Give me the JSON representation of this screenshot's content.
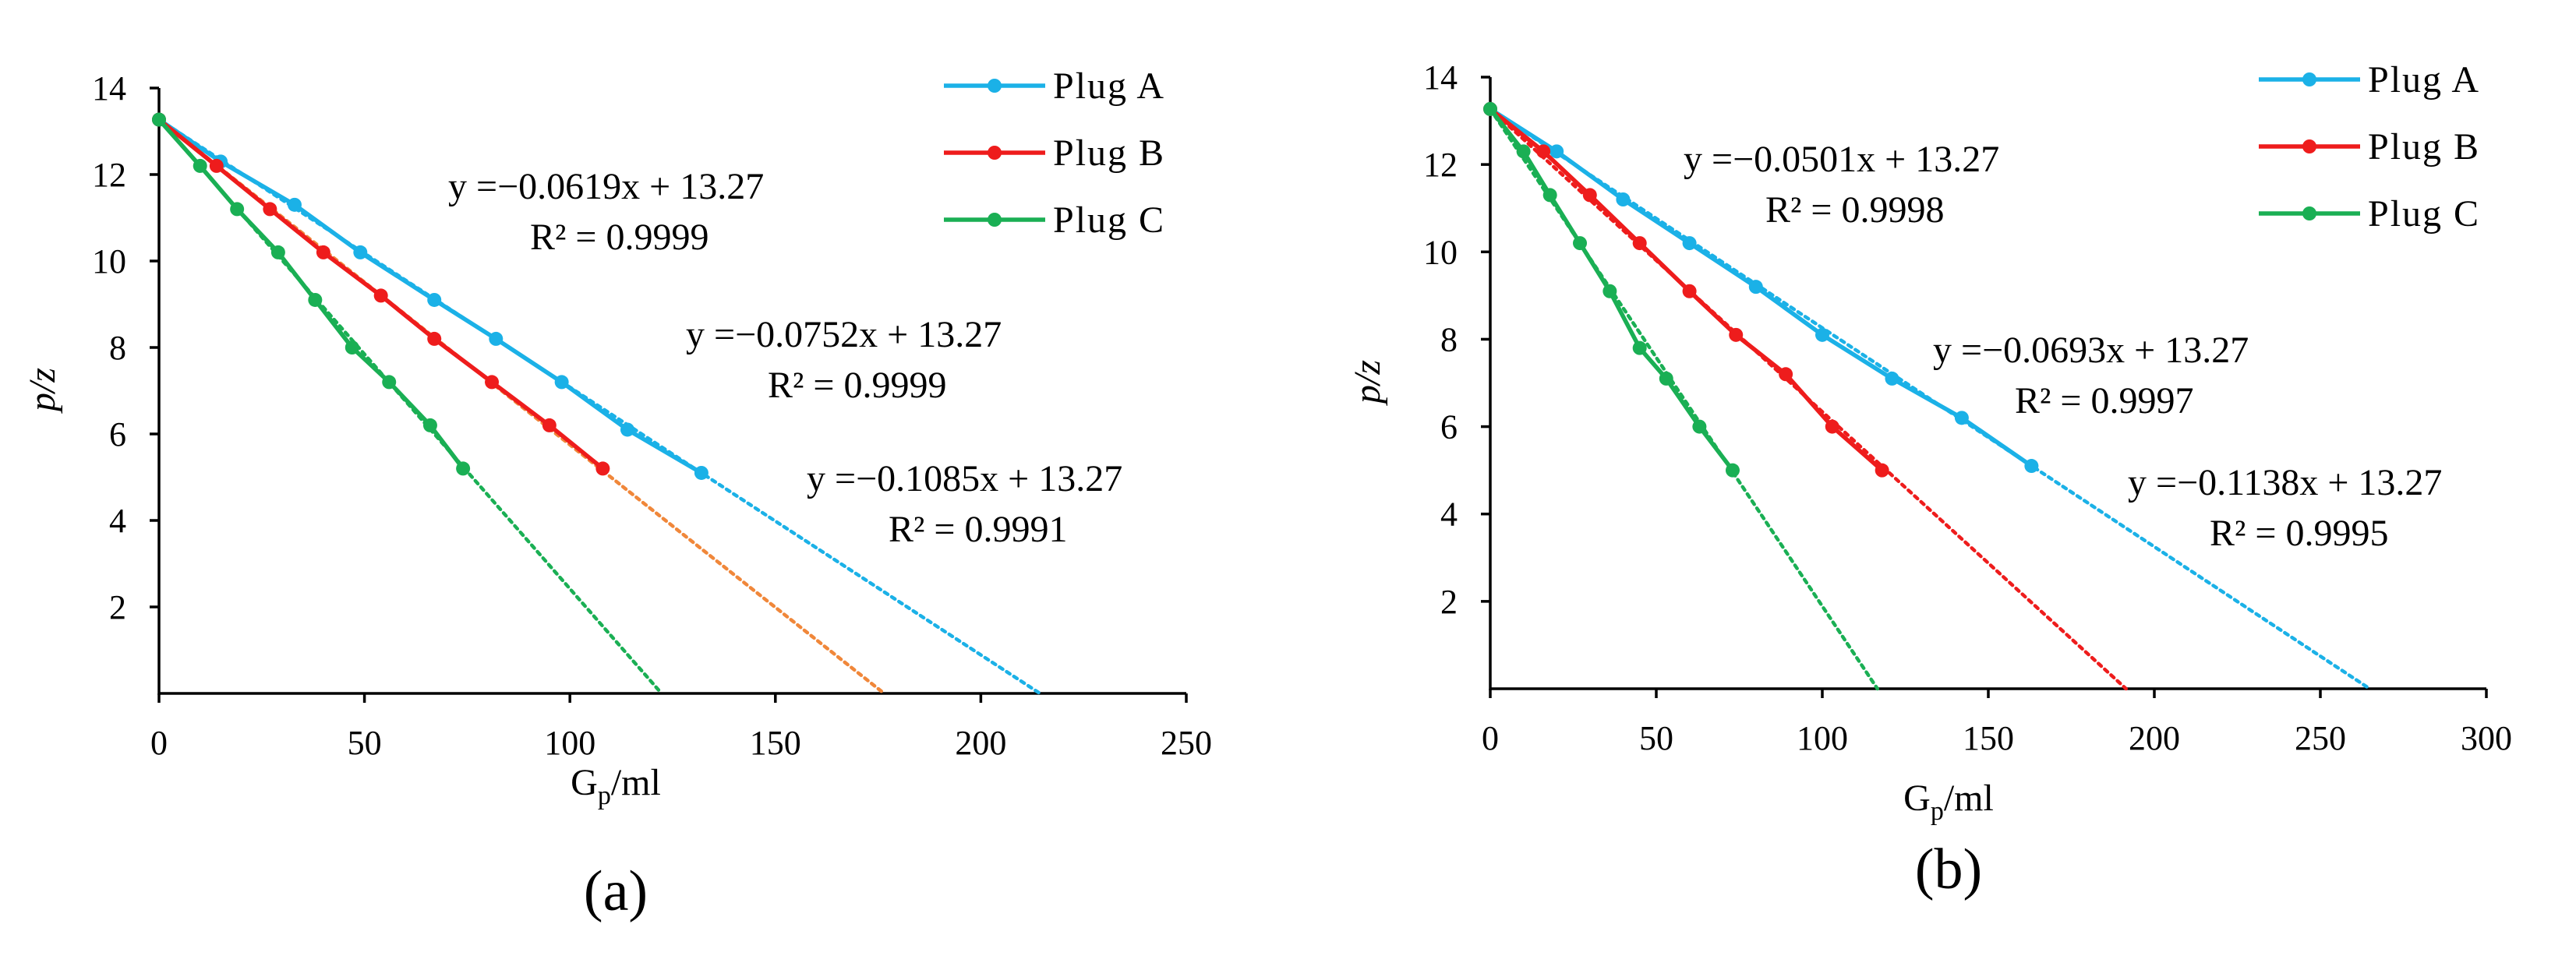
{
  "colors": {
    "plug_a": "#1BB1E7",
    "plug_b": "#EE1C1C",
    "plug_b_fit_a": "#F0873A",
    "plug_c": "#1AAF54"
  },
  "chart_data": [
    {
      "type": "line",
      "panel_label": "(a)",
      "xlabel": "Gp/ml",
      "ylabel": "p/z",
      "xlim": [
        0,
        250
      ],
      "ylim": [
        0,
        14
      ],
      "xticks": [
        0,
        50,
        100,
        150,
        200,
        250
      ],
      "yticks": [
        2,
        4,
        6,
        8,
        10,
        12,
        14
      ],
      "legend": [
        "Plug A",
        "Plug B",
        "Plug C"
      ],
      "series": [
        {
          "name": "Plug A",
          "color": "#1BB1E7",
          "x": [
            0,
            15,
            33,
            49,
            67,
            82,
            98,
            114,
            132
          ],
          "y": [
            13.27,
            12.3,
            11.3,
            10.2,
            9.1,
            8.2,
            7.2,
            6.1,
            5.1
          ],
          "fit": {
            "equation": "y =−0.0619x + 13.27",
            "r2": "R² = 0.9999",
            "slope": -0.0619,
            "intercept": 13.27,
            "color": "#1BB1E7"
          }
        },
        {
          "name": "Plug B",
          "color": "#EE1C1C",
          "x": [
            0,
            14,
            27,
            40,
            54,
            67,
            81,
            95,
            108
          ],
          "y": [
            13.27,
            12.2,
            11.2,
            10.2,
            9.2,
            8.2,
            7.2,
            6.2,
            5.2
          ],
          "fit": {
            "equation": "y =−0.0752x + 13.27",
            "r2": "R² = 0.9999",
            "slope": -0.0752,
            "intercept": 13.27,
            "color": "#F0873A"
          }
        },
        {
          "name": "Plug C",
          "color": "#1AAF54",
          "x": [
            0,
            10,
            19,
            29,
            38,
            47,
            56,
            66,
            74
          ],
          "y": [
            13.27,
            12.2,
            11.2,
            10.2,
            9.1,
            8.0,
            7.2,
            6.2,
            5.2
          ],
          "fit": {
            "equation": "y =−0.1085x + 13.27",
            "r2": "R² = 0.9991",
            "slope": -0.1085,
            "intercept": 13.27,
            "color": "#1AAF54"
          }
        }
      ]
    },
    {
      "type": "line",
      "panel_label": "(b)",
      "xlabel": "Gp/ml",
      "ylabel": "p/z",
      "xlim": [
        0,
        300
      ],
      "ylim": [
        0,
        14
      ],
      "xticks": [
        0,
        50,
        100,
        150,
        200,
        250,
        300
      ],
      "yticks": [
        2,
        4,
        6,
        8,
        10,
        12,
        14
      ],
      "legend": [
        "Plug A",
        "Plug B",
        "Plug C"
      ],
      "series": [
        {
          "name": "Plug A",
          "color": "#1BB1E7",
          "x": [
            0,
            20,
            40,
            60,
            80,
            100,
            121,
            142,
            163
          ],
          "y": [
            13.27,
            12.3,
            11.2,
            10.2,
            9.2,
            8.1,
            7.1,
            6.2,
            5.1
          ],
          "fit": {
            "equation": "y =−0.0501x + 13.27",
            "r2": "R² = 0.9998",
            "slope": -0.0501,
            "intercept": 13.27,
            "color": "#1BB1E7"
          }
        },
        {
          "name": "Plug B",
          "color": "#EE1C1C",
          "x": [
            0,
            16,
            30,
            45,
            60,
            74,
            89,
            103,
            118
          ],
          "y": [
            13.27,
            12.3,
            11.3,
            10.2,
            9.1,
            8.1,
            7.2,
            6.0,
            5.0
          ],
          "fit": {
            "equation": "y =−0.0693x + 13.27",
            "r2": "R² = 0.9997",
            "slope": -0.0693,
            "intercept": 13.27,
            "color": "#EE1C1C"
          }
        },
        {
          "name": "Plug C",
          "color": "#1AAF54",
          "x": [
            0,
            10,
            18,
            27,
            36,
            45,
            53,
            63,
            73
          ],
          "y": [
            13.27,
            12.3,
            11.3,
            10.2,
            9.1,
            7.8,
            7.1,
            6.0,
            5.0
          ],
          "fit": {
            "equation": "y =−0.1138x + 13.27",
            "r2": "R² = 0.9995",
            "slope": -0.1138,
            "intercept": 13.27,
            "color": "#1AAF54"
          }
        }
      ]
    }
  ]
}
